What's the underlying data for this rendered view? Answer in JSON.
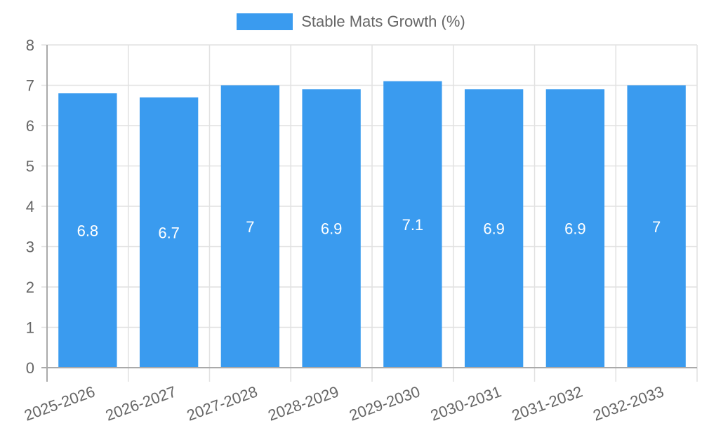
{
  "chart_data": {
    "type": "bar",
    "title": "",
    "categories": [
      "2025-2026",
      "2026-2027",
      "2027-2028",
      "2028-2029",
      "2029-2030",
      "2030-2031",
      "2031-2032",
      "2032-2033"
    ],
    "series": [
      {
        "name": "Stable Mats Growth (%)",
        "values": [
          6.8,
          6.7,
          7,
          6.9,
          7.1,
          6.9,
          6.9,
          7
        ],
        "color": "#3a9bef"
      }
    ],
    "data_labels": [
      "6.8",
      "6.7",
      "7",
      "6.9",
      "7.1",
      "6.9",
      "6.9",
      "7"
    ],
    "xlabel": "",
    "ylabel": "",
    "ylim": [
      0,
      8
    ],
    "yticks": [
      0,
      1,
      2,
      3,
      4,
      5,
      6,
      7,
      8
    ],
    "grid": true,
    "legend_position": "top"
  },
  "legend": {
    "label": "Stable Mats Growth (%)",
    "color": "#3a9bef"
  },
  "colors": {
    "text": "#666666",
    "grid": "#e1e1e1",
    "axis": "#aaaaaa",
    "label": "#ffffff"
  }
}
